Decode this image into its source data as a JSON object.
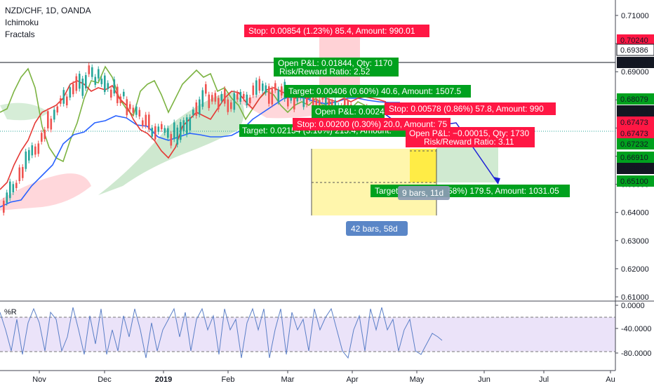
{
  "legend": {
    "symbol": "NZD/CHF, 1D, OANDA",
    "indicator1": "Ichimoku",
    "indicator2": "Fractals"
  },
  "colors": {
    "kumo_bull": "#a5d6a7",
    "kumo_bear": "#ffcdd2",
    "tenkan": "#e53935",
    "kijun": "#2962ff",
    "chikou": "#7cb342",
    "wpr": "#5b7fc7",
    "wpr_band": "#e6dcf7",
    "profit_zone": "#fff59d",
    "loss_red": "#ff1744",
    "target_green": "#00a11e",
    "hline": "#131722"
  },
  "chart_data": [
    {
      "type": "line",
      "title": "NZD/CHF, 1D, OANDA",
      "xlabel": "",
      "ylabel": "",
      "x_ticks": [
        "Nov",
        "Dec",
        "2019",
        "Feb",
        "Mar",
        "Apr",
        "May",
        "Jun",
        "Jul",
        "Au"
      ],
      "y_ticks": [
        "0.71000",
        "0.70000",
        "0.69000",
        "0.68000",
        "0.67000",
        "0.66000",
        "0.65000",
        "0.64000",
        "0.63000",
        "0.62000",
        "0.61000"
      ],
      "ylim": [
        0.6085,
        0.7158
      ],
      "grid": false,
      "horizontal_line": 0.69386,
      "series": [
        {
          "name": "Ichimoku",
          "x_index": [
            0,
            10,
            20,
            30,
            40,
            50,
            60,
            70,
            80,
            90,
            100,
            110,
            120,
            130
          ],
          "values": [
            0.642,
            0.661,
            0.68,
            0.689,
            0.682,
            0.67,
            0.667,
            0.682,
            0.679,
            0.684,
            0.681,
            0.68,
            0.675,
            0.674
          ]
        }
      ],
      "price_labels": [
        {
          "value": "0.70240",
          "color": "#ff1744"
        },
        {
          "value": "0.69386",
          "color": "#ffffff"
        },
        {
          "value": "0.69386",
          "color": "#131722"
        },
        {
          "value": "0.68079",
          "color": "#00a11e"
        },
        {
          "value": "0.67673",
          "color": "#131722"
        },
        {
          "value": "0.67473",
          "color": "#ff1744"
        },
        {
          "value": "0.67473",
          "color": "#ff1744"
        },
        {
          "value": "0.67232",
          "color": "#00a11e"
        },
        {
          "value": "0.66910",
          "color": "#00a11e"
        },
        {
          "value": "0.66895",
          "color": "#131722"
        },
        {
          "value": "0.65100",
          "color": "#00a11e"
        }
      ]
    },
    {
      "type": "line",
      "title": "%R",
      "y_ticks": [
        "0.0000",
        "-40.0000",
        "-80.0000"
      ],
      "ylim": [
        -100,
        0
      ],
      "bands": [
        -20,
        -80
      ]
    }
  ],
  "tags": {
    "stop_top": "Stop: 0.00854 (1.23%) 85.4, Amount: 990.01",
    "openpl_1": "Open P&L: 0.01844, Qty: 1170",
    "rr_1": "Risk/Reward Ratio: 2.52",
    "target_1": "Target: 0.00406 (0.60%) 40.6, Amount: 1507.5",
    "openpl_2": "Open P&L: 0.0024",
    "stop_2": "Stop: 0.00578 (0.86%) 57.8, Amount: 990",
    "stop_3": "Stop: 0.00200 (0.30%) 20.0, Amount: 75",
    "target_2": "Target: 0.02154 (3.16%) 215.4, Amount:",
    "openpl_3": "Open P&L: −0.00015, Qty: 1730",
    "rr_3": "Risk/Reward Ratio: 3.11",
    "target_3": "Target",
    "target_3_tail": "58%) 179.5, Amount: 1031.05",
    "range_short": "9 bars, 11d",
    "range_long": "42 bars, 58d"
  }
}
